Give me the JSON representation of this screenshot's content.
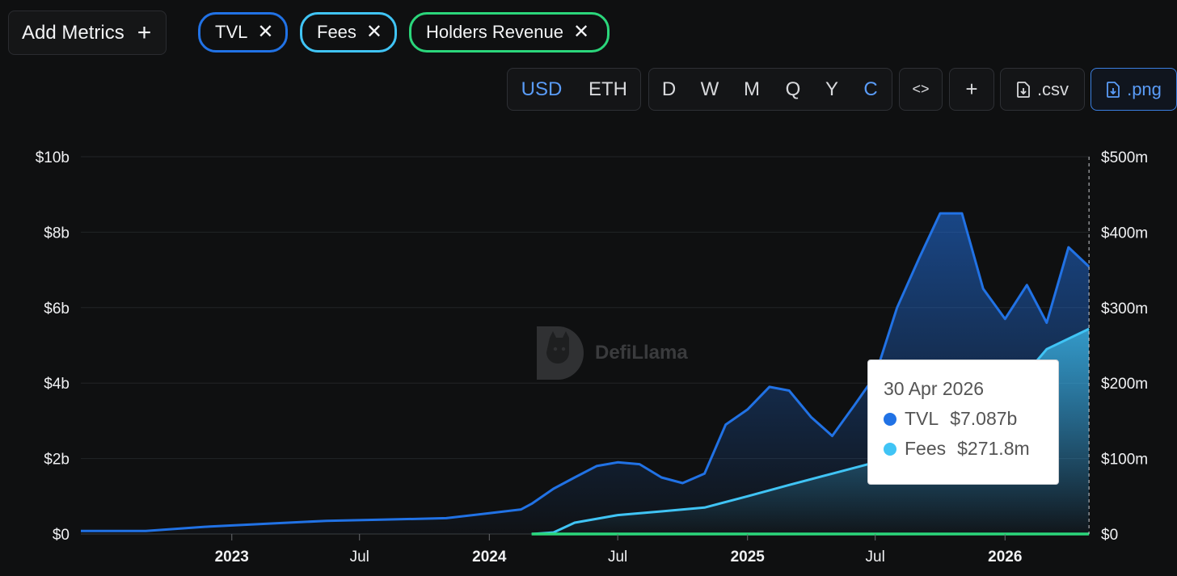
{
  "metrics_bar": {
    "add_label": "Add Metrics",
    "chips": [
      {
        "label": "TVL",
        "color": "#2172e5"
      },
      {
        "label": "Fees",
        "color": "#40c4f5"
      },
      {
        "label": "Holders Revenue",
        "color": "#2bd67b"
      }
    ]
  },
  "toolbar": {
    "currency": [
      "USD",
      "ETH"
    ],
    "currency_active": "USD",
    "periods": [
      "D",
      "W",
      "M",
      "Q",
      "Y",
      "C"
    ],
    "period_active": "C",
    "embed_label": "<>",
    "add_label": "+",
    "csv_label": ".csv",
    "png_label": ".png"
  },
  "watermark": {
    "text": "DefiLlama"
  },
  "tooltip": {
    "date": "30 Apr 2026",
    "rows": [
      {
        "name": "TVL",
        "value": "$7.087b",
        "color": "#2172e5"
      },
      {
        "name": "Fees",
        "value": "$271.8m",
        "color": "#40c4f5"
      }
    ]
  },
  "chart_data": {
    "type": "area",
    "title": "",
    "x_range": [
      "2022-06-01",
      "2026-05-01"
    ],
    "x_ticks": [
      {
        "label": "2023",
        "date": "2023-01-01",
        "year": true
      },
      {
        "label": "Jul",
        "date": "2023-07-01",
        "year": false
      },
      {
        "label": "2024",
        "date": "2024-01-01",
        "year": true
      },
      {
        "label": "Jul",
        "date": "2024-07-01",
        "year": false
      },
      {
        "label": "2025",
        "date": "2025-01-01",
        "year": true
      },
      {
        "label": "Jul",
        "date": "2025-07-01",
        "year": false
      },
      {
        "label": "2026",
        "date": "2026-01-01",
        "year": true
      }
    ],
    "y_left": {
      "range": [
        0,
        10
      ],
      "unit": "billions USD",
      "ticks": [
        "$0",
        "$2b",
        "$4b",
        "$6b",
        "$8b",
        "$10b"
      ]
    },
    "y_right": {
      "range": [
        0,
        500
      ],
      "unit": "millions USD",
      "ticks": [
        "$0",
        "$100m",
        "$200m",
        "$300m",
        "$400m",
        "$500m"
      ]
    },
    "grid": true,
    "series": [
      {
        "name": "TVL",
        "axis": "left",
        "color": "#2172e5",
        "points": [
          [
            "2022-06-01",
            0.08
          ],
          [
            "2022-09-01",
            0.08
          ],
          [
            "2022-12-01",
            0.2
          ],
          [
            "2023-03-01",
            0.28
          ],
          [
            "2023-05-15",
            0.35
          ],
          [
            "2023-08-01",
            0.38
          ],
          [
            "2023-11-01",
            0.42
          ],
          [
            "2024-01-01",
            0.55
          ],
          [
            "2024-02-15",
            0.65
          ],
          [
            "2024-03-01",
            0.8
          ],
          [
            "2024-04-01",
            1.2
          ],
          [
            "2024-05-01",
            1.5
          ],
          [
            "2024-06-01",
            1.8
          ],
          [
            "2024-07-01",
            1.9
          ],
          [
            "2024-08-01",
            1.85
          ],
          [
            "2024-09-01",
            1.5
          ],
          [
            "2024-10-01",
            1.35
          ],
          [
            "2024-11-01",
            1.6
          ],
          [
            "2024-12-01",
            2.9
          ],
          [
            "2025-01-01",
            3.3
          ],
          [
            "2025-02-01",
            3.9
          ],
          [
            "2025-03-01",
            3.8
          ],
          [
            "2025-04-01",
            3.1
          ],
          [
            "2025-05-01",
            2.6
          ],
          [
            "2025-06-01",
            3.4
          ],
          [
            "2025-07-01",
            4.2
          ],
          [
            "2025-08-01",
            6.0
          ],
          [
            "2025-09-01",
            7.3
          ],
          [
            "2025-10-01",
            8.5
          ],
          [
            "2025-11-01",
            8.5
          ],
          [
            "2025-12-01",
            6.5
          ],
          [
            "2026-01-01",
            5.7
          ],
          [
            "2026-02-01",
            6.6
          ],
          [
            "2026-03-01",
            5.6
          ],
          [
            "2026-04-01",
            7.6
          ],
          [
            "2026-04-30",
            7.087
          ]
        ]
      },
      {
        "name": "Fees",
        "axis": "right",
        "color": "#40c4f5",
        "points": [
          [
            "2024-03-01",
            0
          ],
          [
            "2024-04-01",
            2
          ],
          [
            "2024-05-01",
            15
          ],
          [
            "2024-07-01",
            25
          ],
          [
            "2024-09-01",
            30
          ],
          [
            "2024-11-01",
            35
          ],
          [
            "2025-01-01",
            50
          ],
          [
            "2025-03-01",
            65
          ],
          [
            "2025-05-01",
            80
          ],
          [
            "2025-07-01",
            95
          ],
          [
            "2025-09-01",
            120
          ],
          [
            "2025-11-01",
            150
          ],
          [
            "2026-01-01",
            180
          ],
          [
            "2026-03-01",
            245
          ],
          [
            "2026-04-30",
            271.8
          ]
        ]
      },
      {
        "name": "Holders Revenue",
        "axis": "right",
        "color": "#2bd67b",
        "points": [
          [
            "2024-03-01",
            0
          ],
          [
            "2026-04-30",
            0
          ]
        ]
      }
    ]
  }
}
